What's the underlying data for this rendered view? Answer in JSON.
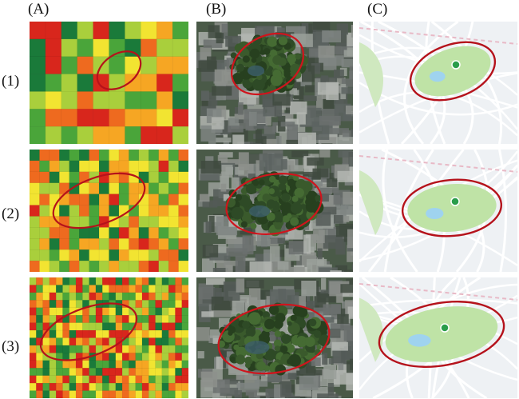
{
  "column_labels": [
    "(A)",
    "(B)",
    "(C)"
  ],
  "row_labels": [
    "(1)",
    "(2)",
    "(3)"
  ],
  "grid_rows": [
    {
      "cols": 10,
      "rows": 7
    },
    {
      "cols": 16,
      "rows": 11
    },
    {
      "cols": 24,
      "rows": 16
    }
  ],
  "colors": {
    "heat": [
      "#1a7a3a",
      "#4aa53a",
      "#a9cf3c",
      "#f2e431",
      "#f6a623",
      "#ee6a1f",
      "#d8261c"
    ],
    "ellipse": "#b5121b",
    "map_bg": "#eef1f4",
    "park": "#bfe3a6",
    "water": "#9fd3ef",
    "satellite_base": "#4a5a48"
  }
}
